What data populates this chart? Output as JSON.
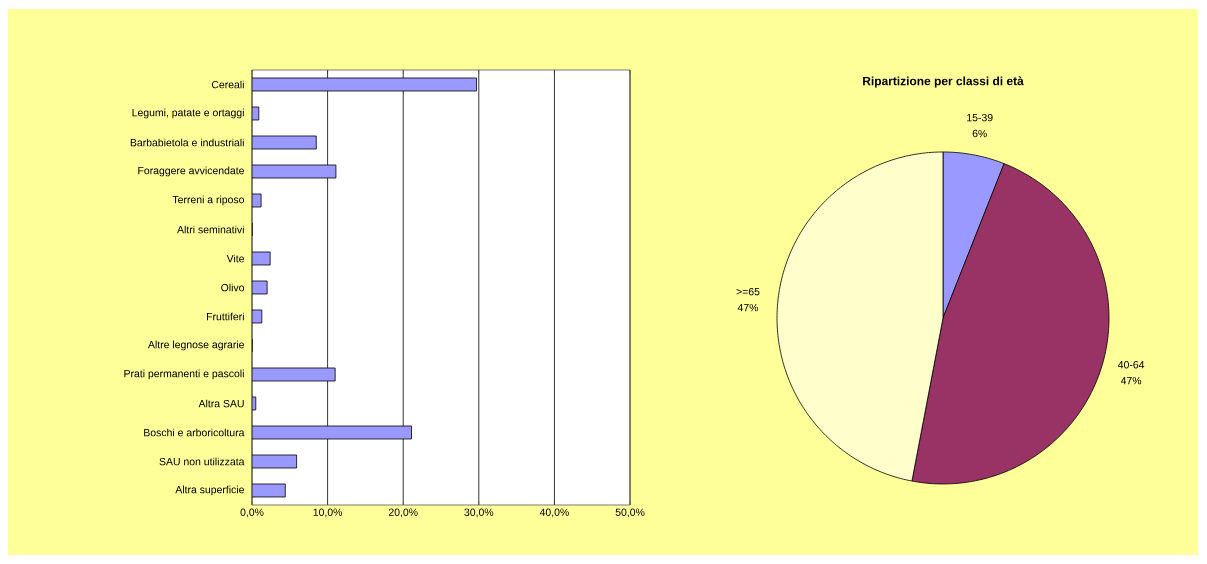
{
  "chart_data": [
    {
      "type": "bar",
      "orientation": "horizontal",
      "categories": [
        "Cereali",
        "Legumi, patate e ortaggi",
        "Barbabietola e industriali",
        "Foraggere avvicendate",
        "Terreni a riposo",
        "Altri seminativi",
        "Vite",
        "Olivo",
        "Fruttiferi",
        "Altre legnose agrarie",
        "Prati permanenti e pascoli",
        "Altra SAU",
        "Boschi e arboricoltura",
        "SAU non utilizzata",
        "Altra superficie"
      ],
      "values": [
        29.7,
        0.9,
        8.5,
        11.1,
        1.2,
        0,
        2.4,
        2.0,
        1.3,
        0,
        11.0,
        0.5,
        21.1,
        5.9,
        4.4
      ],
      "color": "#9999ff",
      "xlim": [
        0,
        50
      ],
      "xticks": [
        {
          "value": 0,
          "label": "0,0%"
        },
        {
          "value": 10,
          "label": "10,0%"
        },
        {
          "value": 20,
          "label": "20,0%"
        },
        {
          "value": 30,
          "label": "30,0%"
        },
        {
          "value": 40,
          "label": "40,0%"
        },
        {
          "value": 50,
          "label": "50,0%"
        }
      ],
      "grid": "x"
    },
    {
      "type": "pie",
      "title": "Ripartizione per classi di età",
      "categories": [
        "15-39",
        "40-64",
        ">=65"
      ],
      "values": [
        6,
        47,
        47
      ],
      "colors": [
        "#9999ff",
        "#993366",
        "#ffffcc"
      ],
      "value_labels": [
        "6%",
        "47%",
        "47%"
      ]
    }
  ]
}
